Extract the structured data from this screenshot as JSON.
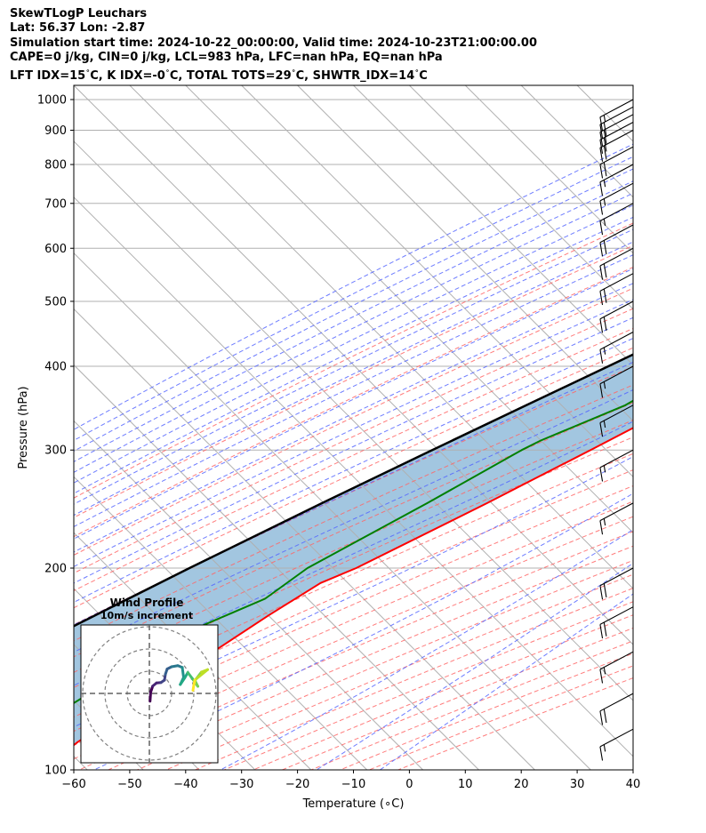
{
  "header": {
    "line1": "SkewTLogP Leuchars",
    "line2": "Lat: 56.37   Lon: -2.87",
    "line3": "Simulation start time: 2024-10-22_00:00:00, Valid time: 2024-10-23T21:00:00.00",
    "line4": "CAPE=0 j/kg, CIN=0 j/kg, LCL=983 hPa, LFC=nan hPa, EQ=nan hPa",
    "line5": "LFT IDX=15$^\\circ$C, K IDX=-0$^\\circ$C, TOTAL TOTS=29$^\\circ$C, SHWTR_IDX=14$^\\circ$C"
  },
  "colors": {
    "temperature": "#ff0000",
    "dewpoint": "#008000",
    "parcel": "#000000",
    "cape_fill": "#a2c6e0",
    "dry_adiabat": "#ff6666",
    "moist_adiabat": "#5566ff",
    "mixing_ratio": "#9944cc",
    "isotherm": "#b0b0b0"
  },
  "chart_data": [
    {
      "type": "line",
      "subtype": "skew-t log-p",
      "xlabel": "Temperature ($^\\circ$C)",
      "ylabel": "Pressure (hPa)",
      "xlim": [
        -60,
        40
      ],
      "ylim": [
        1050,
        100
      ],
      "yscale": "log",
      "x_ticks": [
        -60,
        -50,
        -40,
        -30,
        -20,
        -10,
        0,
        10,
        20,
        30,
        40
      ],
      "x_tick_labels": [
        "−60",
        "−50",
        "−40",
        "−30",
        "−20",
        "−10",
        "0",
        "10",
        "20",
        "30",
        "40"
      ],
      "y_ticks": [
        100,
        200,
        300,
        400,
        500,
        600,
        700,
        800,
        900,
        1000
      ],
      "grid": true,
      "series": [
        {
          "role": "temperature",
          "color": "#ff0000",
          "points": [
            [
              1000,
              10.3
            ],
            [
              975,
              8.3
            ],
            [
              950,
              8.4
            ],
            [
              925,
              9.4
            ],
            [
              900,
              10.2
            ],
            [
              850,
              10.6
            ],
            [
              800,
              10.0
            ],
            [
              750,
              8.6
            ],
            [
              700,
              7.0
            ],
            [
              650,
              4.8
            ],
            [
              600,
              2.4
            ],
            [
              550,
              -0.4
            ],
            [
              500,
              -3.4
            ],
            [
              450,
              -7.4
            ],
            [
              400,
              -11.6
            ],
            [
              350,
              -17.4
            ],
            [
              300,
              -24.8
            ],
            [
              250,
              -33.8
            ],
            [
              200,
              -45.6
            ],
            [
              190,
              -49.3
            ],
            [
              170,
              -52.8
            ],
            [
              150,
              -56.2
            ],
            [
              130,
              -59.8
            ],
            [
              110,
              -64.3
            ],
            [
              100,
              -65.6
            ]
          ]
        },
        {
          "role": "dewpoint",
          "color": "#008000",
          "points": [
            [
              1000,
              7.3
            ],
            [
              975,
              5.9
            ],
            [
              950,
              1.2
            ],
            [
              925,
              -2.3
            ],
            [
              900,
              -6.5
            ],
            [
              850,
              -10.5
            ],
            [
              800,
              -13.6
            ],
            [
              750,
              -15.4
            ],
            [
              700,
              -16.2
            ],
            [
              650,
              -17.0
            ],
            [
              600,
              -21.2
            ],
            [
              550,
              -29.6
            ],
            [
              500,
              -28.6
            ],
            [
              450,
              -21.6
            ],
            [
              400,
              -21.4
            ],
            [
              350,
              -26.6
            ],
            [
              310,
              -35.4
            ],
            [
              300,
              -37.1
            ],
            [
              250,
              -44.5
            ],
            [
              200,
              -54.3
            ],
            [
              180,
              -56.4
            ],
            [
              160,
              -64.6
            ],
            [
              150,
              -67.8
            ],
            [
              140,
              -68.2
            ],
            [
              130,
              -70.9
            ],
            [
              120,
              -73.5
            ],
            [
              100,
              -79.0
            ]
          ]
        },
        {
          "role": "parcel",
          "color": "#000000",
          "points": [
            [
              1000,
              9.8
            ],
            [
              983,
              8.4
            ],
            [
              950,
              6.9
            ],
            [
              900,
              4.6
            ],
            [
              850,
              2.0
            ],
            [
              800,
              -0.7
            ],
            [
              750,
              -3.6
            ],
            [
              700,
              -6.8
            ],
            [
              650,
              -10.4
            ],
            [
              600,
              -14.5
            ],
            [
              550,
              -19.0
            ],
            [
              500,
              -24.1
            ],
            [
              450,
              -29.9
            ],
            [
              400,
              -36.6
            ],
            [
              350,
              -44.3
            ],
            [
              300,
              -53.1
            ],
            [
              250,
              -63.3
            ],
            [
              200,
              -75.4
            ],
            [
              150,
              -90.3
            ],
            [
              120,
              -101.8
            ],
            [
              100,
              -111.1
            ]
          ]
        }
      ],
      "wind_barbs": [
        {
          "p": 1000,
          "speed_kt": 15
        },
        {
          "p": 975,
          "speed_kt": 20
        },
        {
          "p": 950,
          "speed_kt": 20
        },
        {
          "p": 925,
          "speed_kt": 20
        },
        {
          "p": 900,
          "speed_kt": 20
        },
        {
          "p": 850,
          "speed_kt": 20
        },
        {
          "p": 800,
          "speed_kt": 15
        },
        {
          "p": 750,
          "speed_kt": 15
        },
        {
          "p": 700,
          "speed_kt": 15
        },
        {
          "p": 650,
          "speed_kt": 20
        },
        {
          "p": 600,
          "speed_kt": 20
        },
        {
          "p": 550,
          "speed_kt": 20
        },
        {
          "p": 500,
          "speed_kt": 20
        },
        {
          "p": 450,
          "speed_kt": 15
        },
        {
          "p": 400,
          "speed_kt": 15
        },
        {
          "p": 350,
          "speed_kt": 15
        },
        {
          "p": 300,
          "speed_kt": 15
        },
        {
          "p": 250,
          "speed_kt": 15
        },
        {
          "p": 200,
          "speed_kt": 20
        },
        {
          "p": 175,
          "speed_kt": 20
        },
        {
          "p": 150,
          "speed_kt": 15
        },
        {
          "p": 130,
          "speed_kt": 20
        },
        {
          "p": 115,
          "speed_kt": 15
        }
      ]
    },
    {
      "type": "line",
      "subtype": "hodograph",
      "title": "Wind Profile",
      "subtitle": "10m/s increment",
      "grid": true,
      "rings_ms": [
        10,
        20,
        30
      ],
      "points_uv": [
        [
          0.3,
          -3.5
        ],
        [
          0.6,
          0.6
        ],
        [
          1.5,
          3.3
        ],
        [
          3.2,
          4.7
        ],
        [
          5.2,
          4.9
        ],
        [
          6.8,
          6.0
        ],
        [
          7.2,
          8.6
        ],
        [
          8.0,
          11.0
        ],
        [
          10.0,
          12.0
        ],
        [
          12.8,
          12.5
        ],
        [
          14.8,
          11.7
        ],
        [
          15.4,
          7.2
        ],
        [
          13.9,
          4.0
        ],
        [
          15.9,
          7.0
        ],
        [
          17.3,
          9.4
        ],
        [
          19.4,
          6.6
        ],
        [
          21.8,
          3.2
        ],
        [
          20.5,
          5.8
        ],
        [
          23.4,
          9.6
        ],
        [
          26.2,
          10.7
        ],
        [
          20.4,
          6.0
        ],
        [
          19.6,
          1.4
        ]
      ]
    }
  ]
}
